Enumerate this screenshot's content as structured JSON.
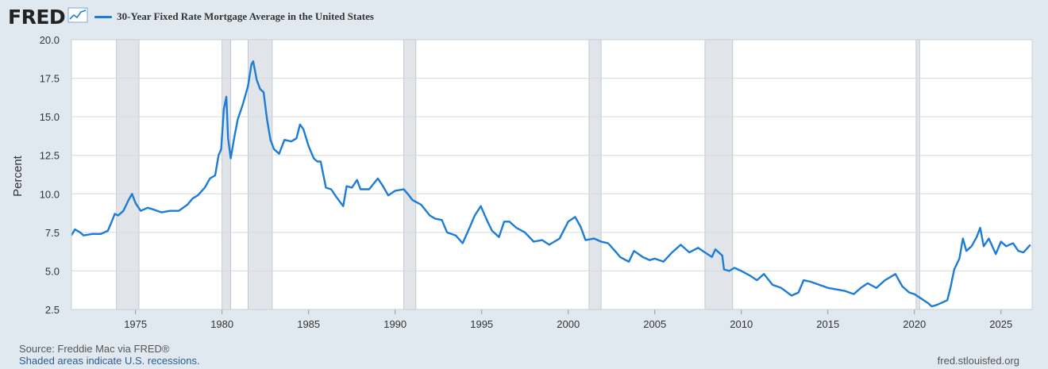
{
  "header": {
    "logo_text": "FRED",
    "logo_icon": "line-chart-icon",
    "legend_label": "30-Year Fixed Rate Mortgage Average in the United States"
  },
  "footer": {
    "source": "Source: Freddie Mac via FRED®",
    "recession_note": "Shaded areas indicate U.S. recessions.",
    "site": "fred.stlouisfed.org"
  },
  "colors": {
    "series": "#1c7cd6",
    "recession": "#e1e5ea",
    "background": "#e1e9f0",
    "plot_background": "#ffffff"
  },
  "chart_data": {
    "type": "line",
    "title": "",
    "ylabel": "Percent",
    "xlabel": "",
    "ylim": [
      2.5,
      20.0
    ],
    "xlim": [
      1971.3,
      2026.8
    ],
    "yticks": [
      "2.5",
      "5.0",
      "7.5",
      "10.0",
      "12.5",
      "15.0",
      "17.5",
      "20.0"
    ],
    "xticks": [
      "1975",
      "1980",
      "1985",
      "1990",
      "1995",
      "2000",
      "2005",
      "2010",
      "2015",
      "2020",
      "2025"
    ],
    "grid": true,
    "legend_position": "top-left",
    "recessions": [
      [
        1973.9,
        1975.2
      ],
      [
        1980.0,
        1980.5
      ],
      [
        1981.5,
        1982.9
      ],
      [
        1990.5,
        1991.2
      ],
      [
        2001.2,
        2001.9
      ],
      [
        2007.9,
        2009.5
      ],
      [
        2020.1,
        2020.3
      ]
    ],
    "series": [
      {
        "x": [
          1971.3,
          1971.5,
          1971.8,
          1972.0,
          1972.5,
          1973.0,
          1973.4,
          1973.7,
          1973.8,
          1974.0,
          1974.3,
          1974.6,
          1974.8,
          1975.0,
          1975.3,
          1975.7,
          1976.0,
          1976.5,
          1977.0,
          1977.5,
          1978.0,
          1978.3,
          1978.6,
          1979.0,
          1979.3,
          1979.6,
          1979.8,
          1979.95,
          1980.1,
          1980.25,
          1980.35,
          1980.5,
          1980.7,
          1980.9,
          1981.2,
          1981.5,
          1981.7,
          1981.8,
          1982.0,
          1982.2,
          1982.4,
          1982.6,
          1982.8,
          1983.0,
          1983.3,
          1983.6,
          1984.0,
          1984.3,
          1984.5,
          1984.7,
          1985.0,
          1985.3,
          1985.5,
          1985.7,
          1986.0,
          1986.3,
          1986.6,
          1987.0,
          1987.2,
          1987.5,
          1987.8,
          1988.0,
          1988.5,
          1989.0,
          1989.3,
          1989.6,
          1990.0,
          1990.5,
          1990.8,
          1991.0,
          1991.5,
          1992.0,
          1992.3,
          1992.7,
          1993.0,
          1993.5,
          1993.9,
          1994.3,
          1994.6,
          1994.95,
          1995.3,
          1995.6,
          1996.0,
          1996.3,
          1996.6,
          1997.0,
          1997.5,
          1998.0,
          1998.5,
          1998.9,
          1999.5,
          2000.0,
          2000.4,
          2000.7,
          2001.0,
          2001.5,
          2001.9,
          2002.3,
          2002.7,
          2003.0,
          2003.5,
          2003.8,
          2004.3,
          2004.7,
          2005.0,
          2005.5,
          2006.0,
          2006.5,
          2007.0,
          2007.5,
          2007.9,
          2008.3,
          2008.5,
          2008.9,
          2009.0,
          2009.3,
          2009.6,
          2010.0,
          2010.5,
          2010.9,
          2011.3,
          2011.8,
          2012.3,
          2012.9,
          2013.3,
          2013.6,
          2014.0,
          2014.5,
          2015.0,
          2015.5,
          2016.0,
          2016.5,
          2016.9,
          2017.3,
          2017.8,
          2018.3,
          2018.9,
          2019.3,
          2019.7,
          2020.0,
          2020.4,
          2020.8,
          2021.0,
          2021.3,
          2021.7,
          2021.9,
          2022.1,
          2022.3,
          2022.6,
          2022.8,
          2023.0,
          2023.3,
          2023.6,
          2023.8,
          2024.0,
          2024.3,
          2024.7,
          2025.0,
          2025.3,
          2025.7,
          2026.0,
          2026.3,
          2026.7
        ],
        "y": [
          7.3,
          7.7,
          7.5,
          7.3,
          7.4,
          7.4,
          7.6,
          8.4,
          8.7,
          8.6,
          8.9,
          9.6,
          10.0,
          9.4,
          8.9,
          9.1,
          9.0,
          8.8,
          8.9,
          8.9,
          9.3,
          9.7,
          9.9,
          10.4,
          11.0,
          11.2,
          12.5,
          12.9,
          15.5,
          16.3,
          13.6,
          12.3,
          13.6,
          14.8,
          15.8,
          17.0,
          18.4,
          18.6,
          17.4,
          16.8,
          16.6,
          14.8,
          13.5,
          12.9,
          12.6,
          13.5,
          13.4,
          13.6,
          14.5,
          14.2,
          13.1,
          12.3,
          12.1,
          12.1,
          10.4,
          10.3,
          9.8,
          9.2,
          10.5,
          10.4,
          10.9,
          10.3,
          10.3,
          11.0,
          10.5,
          9.9,
          10.2,
          10.3,
          9.9,
          9.6,
          9.3,
          8.6,
          8.4,
          8.3,
          7.5,
          7.3,
          6.8,
          7.8,
          8.6,
          9.2,
          8.3,
          7.6,
          7.2,
          8.2,
          8.2,
          7.8,
          7.5,
          6.9,
          7.0,
          6.7,
          7.1,
          8.2,
          8.5,
          7.9,
          7.0,
          7.1,
          6.9,
          6.8,
          6.3,
          5.9,
          5.6,
          6.3,
          5.9,
          5.7,
          5.8,
          5.6,
          6.2,
          6.7,
          6.2,
          6.5,
          6.2,
          5.9,
          6.4,
          6.0,
          5.1,
          5.0,
          5.2,
          5.0,
          4.7,
          4.4,
          4.8,
          4.1,
          3.9,
          3.4,
          3.6,
          4.4,
          4.3,
          4.1,
          3.9,
          3.8,
          3.7,
          3.5,
          3.9,
          4.2,
          3.9,
          4.4,
          4.8,
          4.0,
          3.6,
          3.5,
          3.2,
          2.9,
          2.7,
          2.8,
          3.0,
          3.1,
          4.0,
          5.1,
          5.8,
          7.1,
          6.3,
          6.6,
          7.2,
          7.8,
          6.6,
          7.1,
          6.1,
          6.9,
          6.6,
          6.8,
          6.3,
          6.2,
          6.7
        ]
      }
    ]
  }
}
